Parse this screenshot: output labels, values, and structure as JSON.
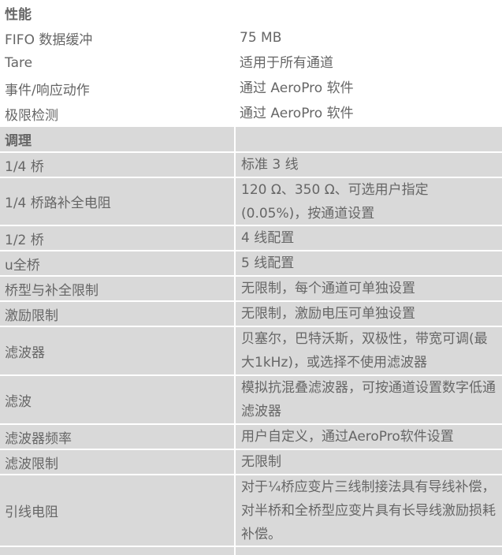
{
  "sections": [
    {
      "title": "性能",
      "rows": [
        {
          "label": "FIFO 数据缓冲",
          "value": "75 MB"
        },
        {
          "label": "Tare",
          "value": "适用于所有通道"
        },
        {
          "label": "事件/响应动作",
          "value": "通过 AeroPro 软件"
        },
        {
          "label": "极限检测",
          "value": "通过 AeroPro 软件"
        }
      ]
    },
    {
      "title": "调理",
      "rows": [
        {
          "label": "1/4 桥",
          "value": "标准 3 线"
        },
        {
          "label": "1/4 桥路补全电阻",
          "value": "120 Ω、350 Ω、可选用户指定 (0.05%)，按通道设置"
        },
        {
          "label": "1/2 桥",
          "value": "4 线配置"
        },
        {
          "label": "u全桥",
          "value": "5 线配置"
        },
        {
          "label": "桥型与补全限制",
          "value": "无限制，每个通道可单独设置"
        },
        {
          "label": "激励限制",
          "value": "无限制，激励电压可单独设置"
        },
        {
          "label": "滤波器",
          "value": "贝塞尔，巴特沃斯，双极性，带宽可调(最大1kHz)，或选择不使用滤波器"
        },
        {
          "label": "滤波",
          "value": "模拟抗混叠滤波器，可按通道设置数字低通滤波器"
        },
        {
          "label": "滤波器频率",
          "value": "用户自定义，通过AeroPro软件设置"
        },
        {
          "label": "滤波限制",
          "value": "无限制"
        },
        {
          "label": "引线电阻",
          "value": "对于¼桥应变片三线制接法具有导线补偿， 对半桥和全桥型应变片具有长导线激励损耗补偿。"
        }
      ]
    }
  ]
}
